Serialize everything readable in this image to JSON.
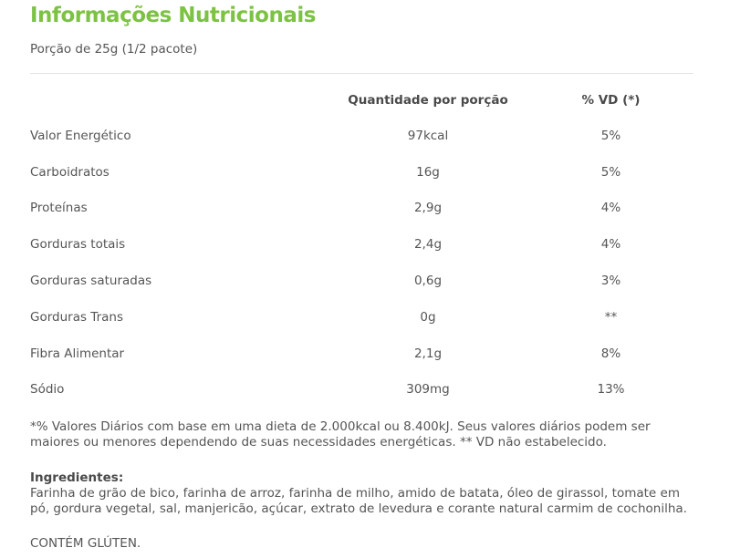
{
  "title": "Informações Nutricionais",
  "portion": "Porção de 25g (1/2 pacote)",
  "table": {
    "headers": [
      "",
      "Quantidade por porção",
      "% VD (*)"
    ],
    "rows": [
      {
        "name": "Valor Energético",
        "qty": "97kcal",
        "vd": "5%"
      },
      {
        "name": "Carboidratos",
        "qty": "16g",
        "vd": "5%"
      },
      {
        "name": "Proteínas",
        "qty": "2,9g",
        "vd": "4%"
      },
      {
        "name": "Gorduras totais",
        "qty": "2,4g",
        "vd": "4%"
      },
      {
        "name": "Gorduras saturadas",
        "qty": "0,6g",
        "vd": "3%"
      },
      {
        "name": "Gorduras Trans",
        "qty": "0g",
        "vd": "**"
      },
      {
        "name": "Fibra Alimentar",
        "qty": "2,1g",
        "vd": "8%"
      },
      {
        "name": "Sódio",
        "qty": "309mg",
        "vd": "13%"
      }
    ]
  },
  "footnote": "*% Valores Diários com base em uma dieta de 2.000kcal ou 8.400kJ. Seus valores diários podem ser maiores ou menores dependendo de suas necessidades energéticas. ** VD não estabelecido.",
  "ingredients": {
    "label": "Ingredientes:",
    "text": "Farinha de grão de bico, farinha de arroz, farinha de milho, amido de batata, óleo de girassol, tomate em pó, gordura vegetal, sal, manjericão, açúcar, extrato de levedura e corante natural carmim de cochonilha."
  },
  "gluten": "CONTÉM GLÚTEN.",
  "colors": {
    "title": "#7cc243",
    "text": "#555555",
    "divider": "#e2e2e2"
  }
}
